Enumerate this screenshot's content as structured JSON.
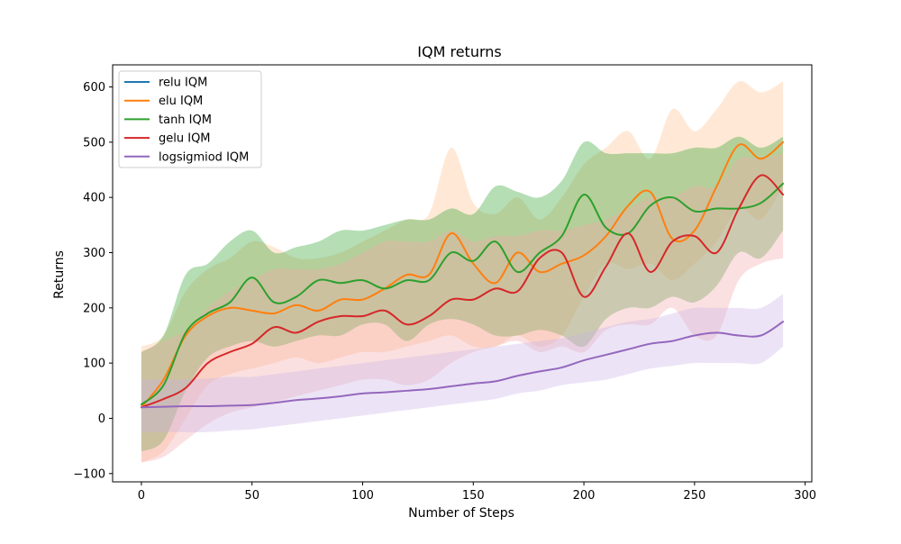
{
  "chart_data": {
    "type": "line",
    "title": "IQM returns",
    "xlabel": "Number of Steps",
    "ylabel": "Returns",
    "xlim": [
      -13,
      303
    ],
    "ylim": [
      -115,
      640
    ],
    "x_ticks": [
      0,
      50,
      100,
      150,
      200,
      250,
      300
    ],
    "y_ticks": [
      -100,
      0,
      100,
      200,
      300,
      400,
      500,
      600
    ],
    "legend_position": "top-left",
    "grid": false,
    "series": [
      {
        "name": "relu IQM",
        "color": "#1f77b4",
        "band_color": "#1f77b4",
        "x": [],
        "mean": [],
        "lower": [],
        "upper": []
      },
      {
        "name": "elu IQM",
        "color": "#ff7f0e",
        "band_color": "#ffc08a",
        "x": [
          0,
          10,
          20,
          30,
          40,
          50,
          60,
          70,
          80,
          90,
          100,
          110,
          120,
          130,
          140,
          150,
          160,
          170,
          180,
          190,
          200,
          210,
          220,
          230,
          240,
          250,
          260,
          270,
          280,
          290
        ],
        "mean": [
          20,
          70,
          150,
          185,
          200,
          195,
          190,
          205,
          195,
          215,
          215,
          235,
          260,
          260,
          335,
          280,
          245,
          300,
          265,
          280,
          295,
          330,
          385,
          410,
          325,
          340,
          420,
          495,
          470,
          500
        ],
        "lower": [
          -80,
          -60,
          0,
          60,
          80,
          90,
          100,
          110,
          100,
          110,
          120,
          120,
          130,
          140,
          150,
          130,
          130,
          150,
          130,
          150,
          220,
          280,
          270,
          280,
          250,
          280,
          320,
          380,
          360,
          420
        ],
        "upper": [
          130,
          150,
          230,
          270,
          290,
          320,
          310,
          290,
          290,
          300,
          320,
          340,
          360,
          370,
          490,
          390,
          370,
          400,
          360,
          400,
          460,
          490,
          520,
          470,
          560,
          520,
          560,
          610,
          590,
          610
        ]
      },
      {
        "name": "tanh IQM",
        "color": "#2ca02c",
        "band_color": "#2ca02c",
        "x": [
          0,
          10,
          20,
          30,
          40,
          50,
          60,
          70,
          80,
          90,
          100,
          110,
          120,
          130,
          140,
          150,
          160,
          170,
          180,
          190,
          200,
          210,
          220,
          230,
          240,
          250,
          260,
          270,
          280,
          290
        ],
        "mean": [
          25,
          60,
          155,
          190,
          210,
          255,
          210,
          220,
          250,
          245,
          250,
          235,
          250,
          250,
          300,
          285,
          320,
          265,
          300,
          330,
          405,
          345,
          335,
          385,
          400,
          375,
          380,
          380,
          390,
          425
        ],
        "lower": [
          -60,
          -40,
          50,
          110,
          130,
          140,
          130,
          140,
          150,
          150,
          170,
          170,
          140,
          170,
          180,
          170,
          150,
          150,
          160,
          150,
          130,
          180,
          200,
          200,
          220,
          210,
          240,
          300,
          290,
          340
        ],
        "upper": [
          120,
          150,
          260,
          280,
          320,
          340,
          300,
          310,
          320,
          340,
          340,
          350,
          360,
          360,
          380,
          370,
          420,
          410,
          400,
          430,
          500,
          480,
          480,
          480,
          480,
          490,
          490,
          510,
          490,
          510
        ]
      },
      {
        "name": "gelu IQM",
        "color": "#d62728",
        "band_color": "#f4a7a9",
        "x": [
          0,
          10,
          20,
          30,
          40,
          50,
          60,
          70,
          80,
          90,
          100,
          110,
          120,
          130,
          140,
          150,
          160,
          170,
          180,
          190,
          200,
          210,
          220,
          230,
          240,
          250,
          260,
          270,
          280,
          290
        ],
        "mean": [
          20,
          35,
          55,
          100,
          120,
          135,
          165,
          155,
          175,
          185,
          185,
          195,
          170,
          185,
          215,
          215,
          235,
          230,
          290,
          300,
          220,
          275,
          335,
          265,
          320,
          330,
          300,
          380,
          440,
          405
        ],
        "lower": [
          -80,
          -70,
          -40,
          -10,
          10,
          20,
          30,
          40,
          50,
          60,
          70,
          70,
          60,
          70,
          100,
          120,
          130,
          140,
          120,
          130,
          120,
          160,
          170,
          170,
          200,
          150,
          150,
          250,
          280,
          290
        ],
        "upper": [
          120,
          140,
          160,
          200,
          230,
          250,
          270,
          270,
          270,
          280,
          300,
          320,
          320,
          320,
          340,
          320,
          330,
          330,
          340,
          340,
          350,
          360,
          380,
          400,
          400,
          420,
          420,
          470,
          470,
          480
        ]
      },
      {
        "name": "logsigmiod IQM",
        "color": "#9467bd",
        "band_color": "#c9b3e6",
        "x": [
          0,
          10,
          20,
          30,
          40,
          50,
          60,
          70,
          80,
          90,
          100,
          110,
          120,
          130,
          140,
          150,
          160,
          170,
          180,
          190,
          200,
          210,
          220,
          230,
          240,
          250,
          260,
          270,
          280,
          290
        ],
        "mean": [
          20,
          21,
          22,
          22,
          23,
          24,
          28,
          33,
          36,
          40,
          45,
          47,
          50,
          53,
          58,
          63,
          67,
          77,
          85,
          92,
          105,
          115,
          125,
          135,
          140,
          150,
          155,
          150,
          150,
          175
        ],
        "lower": [
          -25,
          -25,
          -25,
          -25,
          -22,
          -20,
          -15,
          -10,
          -5,
          0,
          5,
          10,
          15,
          20,
          25,
          30,
          35,
          45,
          50,
          60,
          65,
          70,
          80,
          90,
          95,
          100,
          100,
          100,
          100,
          130
        ],
        "upper": [
          70,
          70,
          70,
          72,
          75,
          75,
          80,
          85,
          90,
          95,
          100,
          105,
          110,
          115,
          120,
          125,
          130,
          135,
          140,
          145,
          155,
          165,
          175,
          180,
          190,
          200,
          200,
          200,
          200,
          225
        ]
      }
    ]
  }
}
